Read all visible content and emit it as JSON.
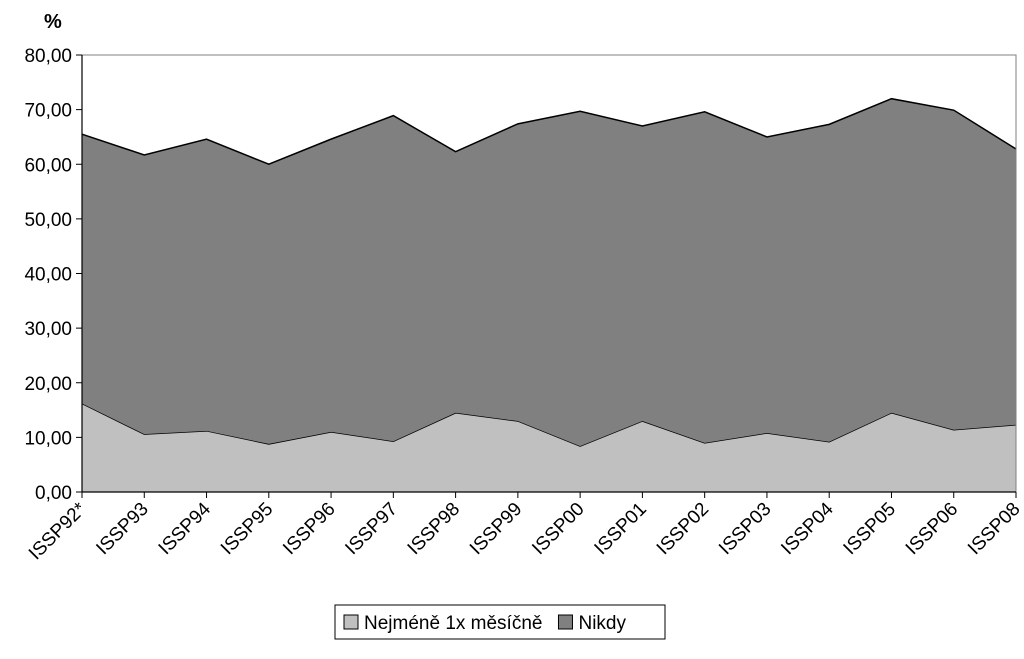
{
  "chart_data": {
    "type": "area",
    "stacked": true,
    "ylabel": "%",
    "xlabel": "",
    "ylim": [
      0,
      80
    ],
    "yticks": [
      "0,00",
      "10,00",
      "20,00",
      "30,00",
      "40,00",
      "50,00",
      "60,00",
      "70,00",
      "80,00"
    ],
    "categories": [
      "ISSP92*",
      "ISSP93",
      "ISSP94",
      "ISSP95",
      "ISSP96",
      "ISSP97",
      "ISSP98",
      "ISSP99",
      "ISSP00",
      "ISSP01",
      "ISSP02",
      "ISSP03",
      "ISSP04",
      "ISSP05",
      "ISSP06",
      "ISSP08"
    ],
    "series": [
      {
        "name": "Nejméně 1x měsíčně",
        "color": "#c0c0c0",
        "values": [
          16.2,
          10.6,
          11.2,
          8.8,
          11.0,
          9.3,
          14.5,
          13.0,
          8.4,
          13.0,
          9.0,
          10.8,
          9.2,
          14.5,
          11.4,
          12.3
        ]
      },
      {
        "name": "Nikdy",
        "color": "#808080",
        "values": [
          49.3,
          51.1,
          53.4,
          51.2,
          53.6,
          59.6,
          47.8,
          54.4,
          61.3,
          54.0,
          60.6,
          54.2,
          58.1,
          57.5,
          58.5,
          50.5
        ]
      }
    ],
    "grid": false,
    "legend_position": "bottom-center"
  }
}
